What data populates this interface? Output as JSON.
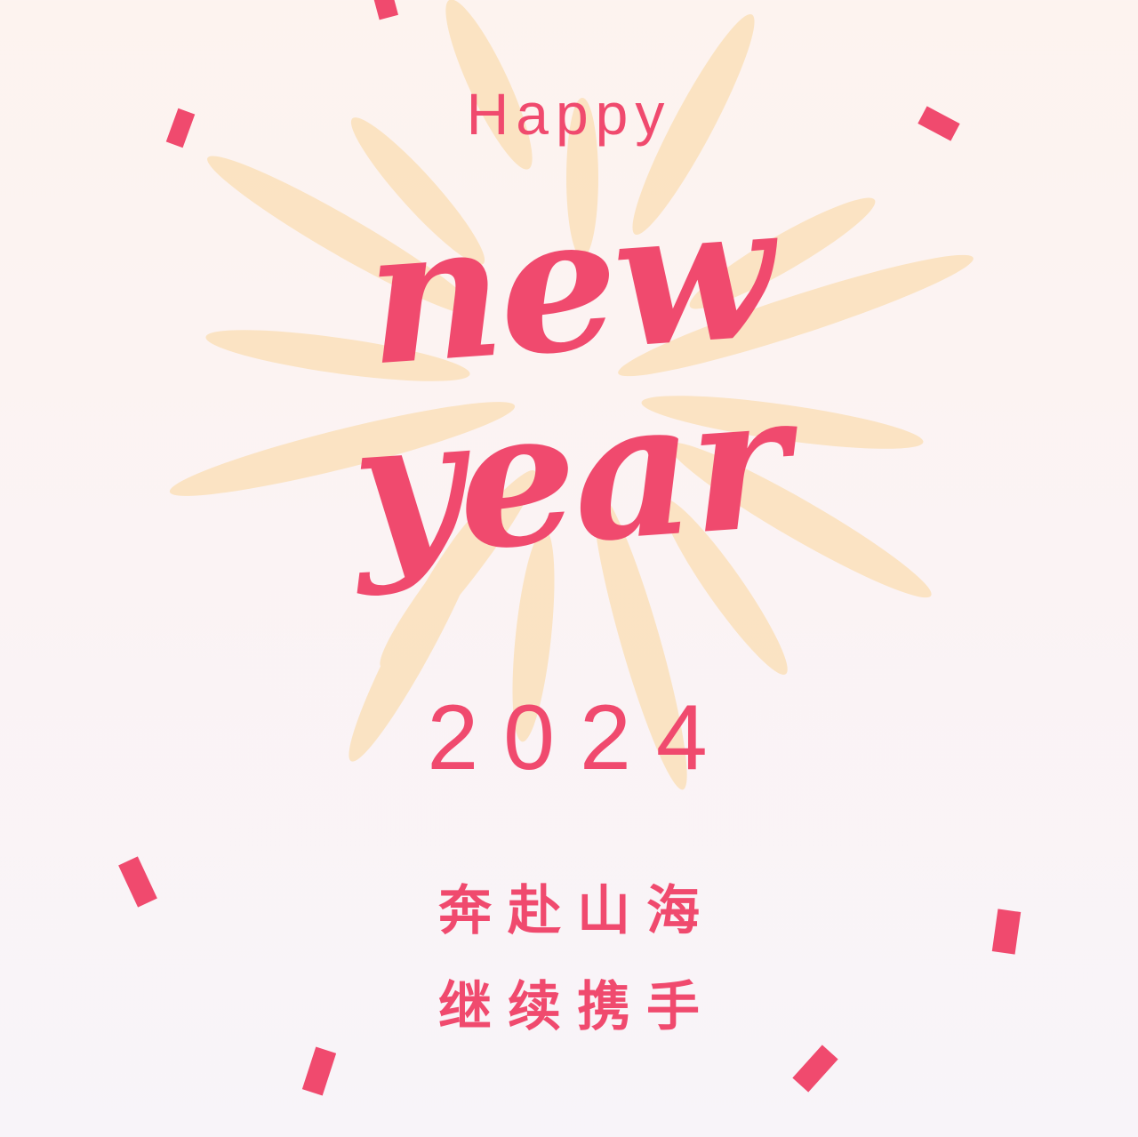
{
  "colors": {
    "accent": "#f04a6e",
    "burst": "#fbe1bb",
    "background_top": "#fdf3ef",
    "background_bottom": "#f8f4f9"
  },
  "greeting": {
    "happy": "Happy",
    "new": "new",
    "year": "year",
    "year_number": "2024"
  },
  "message": {
    "line1": "奔赴山海",
    "line2": "继续携手"
  },
  "decorations": {
    "burst": "firework-burst",
    "confetti": "confetti-piece"
  }
}
